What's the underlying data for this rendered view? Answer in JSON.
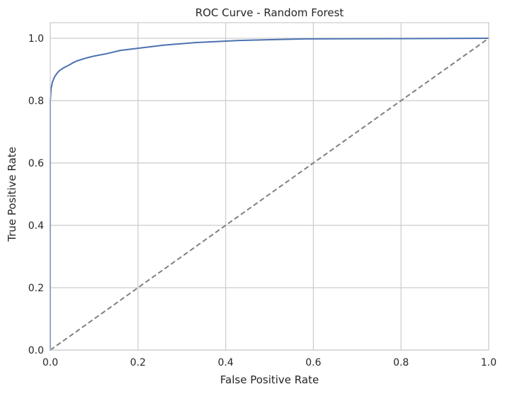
{
  "chart_data": {
    "type": "line",
    "title": "ROC Curve - Random Forest",
    "xlabel": "False Positive Rate",
    "ylabel": "True Positive Rate",
    "xlim": [
      0.0,
      1.0
    ],
    "ylim": [
      0.0,
      1.05
    ],
    "xticks": [
      "0.0",
      "0.2",
      "0.4",
      "0.6",
      "0.8",
      "1.0"
    ],
    "yticks": [
      "0.0",
      "0.2",
      "0.4",
      "0.6",
      "0.8",
      "1.0"
    ],
    "grid": true,
    "legend": false,
    "series": [
      {
        "style": "solid",
        "color": "#4c72b0",
        "x": [
          0.0,
          0.0,
          0.002,
          0.005,
          0.01,
          0.015,
          0.02,
          0.03,
          0.04,
          0.05,
          0.06,
          0.08,
          0.1,
          0.13,
          0.16,
          0.2,
          0.26,
          0.33,
          0.43,
          0.58,
          0.8,
          1.0
        ],
        "y": [
          0.0,
          0.8,
          0.84,
          0.86,
          0.877,
          0.887,
          0.895,
          0.905,
          0.912,
          0.92,
          0.927,
          0.936,
          0.943,
          0.951,
          0.961,
          0.968,
          0.978,
          0.986,
          0.993,
          0.998,
          0.999,
          1.0
        ]
      },
      {
        "style": "dashed",
        "color": "#808080",
        "x": [
          0.0,
          1.0
        ],
        "y": [
          0.0,
          1.0
        ]
      }
    ]
  }
}
